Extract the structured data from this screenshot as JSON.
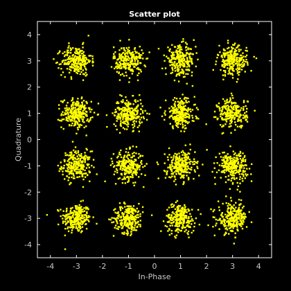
{
  "chart_data": {
    "type": "scatter",
    "title": "Scatter plot",
    "xlabel": "In-Phase",
    "ylabel": "Quadrature",
    "xlim": [
      -4.5,
      4.5
    ],
    "ylim": [
      -4.5,
      4.5
    ],
    "xticks": [
      -4,
      -3,
      -2,
      -1,
      0,
      1,
      2,
      3,
      4
    ],
    "yticks": [
      -4,
      -3,
      -2,
      -1,
      0,
      1,
      2,
      3,
      4
    ],
    "grid": false,
    "cluster_centers": {
      "x": [
        -3,
        -1,
        1,
        3
      ],
      "y": [
        -3,
        -1,
        1,
        3
      ]
    },
    "points_per_cluster": 250,
    "noise_std": 0.28,
    "colors": {
      "background": "#000000",
      "axes": "#ffffff",
      "text": "#ffffff",
      "ticks_text": "#c8c8c8",
      "marker": "#ffff00"
    }
  }
}
